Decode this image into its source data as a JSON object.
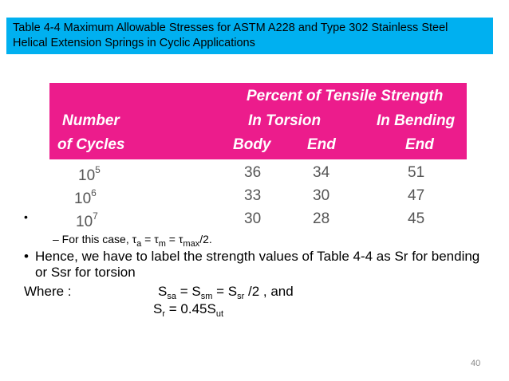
{
  "title": {
    "line1": "Table 4-4 Maximum Allowable Stresses for ASTM A228 and Type 302 Stainless Steel",
    "line2": "Helical Extension Springs in Cyclic Applications"
  },
  "table": {
    "header_percent": "Percent of Tensile Strength",
    "header_number": "Number",
    "header_of_cycles": "of Cycles",
    "header_in_torsion": "In Torsion",
    "header_in_bending": "In Bending",
    "header_body": "Body",
    "header_end": "End",
    "header_end_bending": "End",
    "header_color": "#ec1c8c",
    "rows": [
      {
        "base": "10",
        "exp": "5",
        "body": "36",
        "end": "34",
        "bending_end": "51"
      },
      {
        "base": "10",
        "exp": "6",
        "body": "33",
        "end": "30",
        "bending_end": "47"
      },
      {
        "base": "10",
        "exp": "7",
        "body": "30",
        "end": "28",
        "bending_end": "45"
      }
    ]
  },
  "text": {
    "bullet_dot": "•",
    "sub_bullet_prefix": "– For this case, τ",
    "sub_a": "a",
    "sub_eq1": " = τ",
    "sub_m": "m",
    "sub_eq2": " = τ",
    "sub_max": "max",
    "sub_end": "/2.",
    "main_bullet": "Hence, we have to label the strength values of Table 4-4 as Sr for bending or Ssr for torsion",
    "where": "Where :",
    "eq1_s1": "S",
    "eq1_sa": "sa",
    "eq1_p2": " = S",
    "eq1_sm": "sm",
    "eq1_p3": " = S",
    "eq1_sr": "sr",
    "eq1_end": " /2   , and",
    "eq2_s": "S",
    "eq2_r": "r",
    "eq2_mid": " = 0.45S",
    "eq2_ut": "ut"
  },
  "page_number": "40",
  "accent_title_color": "#00b0f0"
}
